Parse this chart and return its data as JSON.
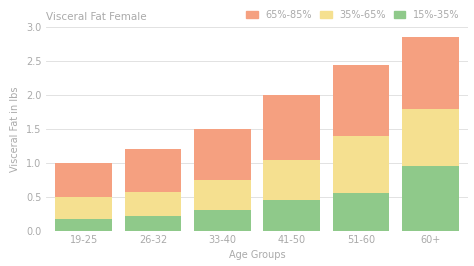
{
  "categories": [
    "19-25",
    "26-32",
    "33-40",
    "41-50",
    "51-60",
    "60+"
  ],
  "xlabel": "Age Groups",
  "ylabel": "Visceral Fat in lbs",
  "title": "Visceral Fat Female",
  "legend_labels": [
    "65%-85%",
    "35%-65%",
    "15%-35%"
  ],
  "colors": [
    "#F5A080",
    "#F5E090",
    "#8FC98A"
  ],
  "seg_salmon": [
    0.5,
    0.63,
    0.75,
    0.95,
    1.05,
    1.05
  ],
  "seg_yellow": [
    0.33,
    0.35,
    0.45,
    0.6,
    0.85,
    0.85
  ],
  "seg_green": [
    0.17,
    0.22,
    0.3,
    0.45,
    0.55,
    0.95
  ],
  "ylim": [
    0,
    3.0
  ],
  "yticks": [
    0.0,
    0.5,
    1.0,
    1.5,
    2.0,
    2.5,
    3.0
  ],
  "background_color": "#ffffff",
  "grid_color": "#dddddd",
  "title_fontsize": 7.5,
  "label_fontsize": 7,
  "tick_fontsize": 7,
  "legend_fontsize": 7,
  "bar_width": 0.82
}
